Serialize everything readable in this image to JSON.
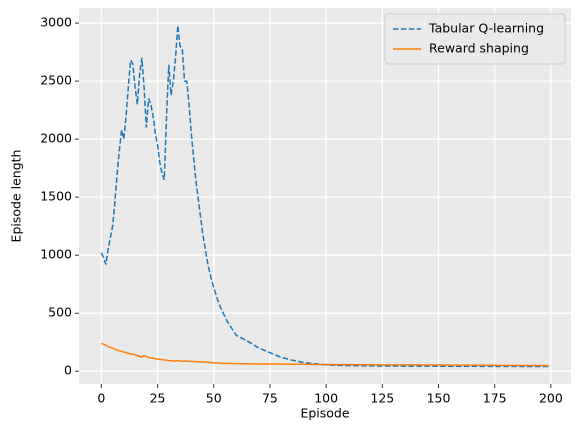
{
  "chart_data": {
    "type": "line",
    "xlabel": "Episode",
    "ylabel": "Episode length",
    "x": [
      0,
      1,
      2,
      3,
      4,
      5,
      6,
      7,
      8,
      9,
      10,
      11,
      12,
      13,
      14,
      15,
      16,
      17,
      18,
      19,
      20,
      21,
      22,
      23,
      24,
      25,
      26,
      27,
      28,
      29,
      30,
      31,
      32,
      33,
      34,
      35,
      36,
      37,
      38,
      39,
      40,
      41,
      42,
      43,
      44,
      45,
      46,
      47,
      48,
      49,
      50,
      51,
      52,
      53,
      54,
      55,
      56,
      57,
      58,
      59,
      60,
      65,
      70,
      75,
      80,
      85,
      90,
      95,
      100,
      105,
      110,
      115,
      120,
      125,
      130,
      135,
      140,
      145,
      150,
      155,
      160,
      165,
      170,
      175,
      180,
      185,
      190,
      195,
      199
    ],
    "series": [
      {
        "name": "Tabular Q-learning",
        "color": "#1f77b4",
        "linestyle": "dashed",
        "values": [
          1020,
          980,
          920,
          1050,
          1150,
          1250,
          1450,
          1700,
          1900,
          2080,
          2000,
          2200,
          2450,
          2680,
          2650,
          2450,
          2300,
          2550,
          2700,
          2450,
          2100,
          2350,
          2300,
          2200,
          2050,
          1950,
          1800,
          1700,
          1650,
          2200,
          2640,
          2380,
          2500,
          2700,
          2980,
          2800,
          2780,
          2500,
          2500,
          2300,
          2050,
          1850,
          1650,
          1500,
          1350,
          1200,
          1080,
          960,
          870,
          790,
          720,
          660,
          600,
          550,
          510,
          470,
          430,
          400,
          370,
          340,
          310,
          260,
          200,
          160,
          120,
          95,
          75,
          65,
          55,
          50,
          48,
          47,
          46,
          45,
          45,
          44,
          44,
          44,
          43,
          43,
          43,
          43,
          42,
          42,
          42,
          42,
          41,
          41,
          41
        ]
      },
      {
        "name": "Reward shaping",
        "color": "#ff7f0e",
        "linestyle": "solid",
        "values": [
          240,
          232,
          225,
          212,
          205,
          200,
          190,
          182,
          175,
          172,
          165,
          160,
          155,
          150,
          148,
          140,
          135,
          128,
          122,
          135,
          125,
          118,
          115,
          112,
          108,
          105,
          102,
          100,
          97,
          95,
          92,
          90,
          88,
          88,
          90,
          88,
          86,
          86,
          88,
          85,
          84,
          84,
          83,
          82,
          82,
          80,
          80,
          78,
          76,
          74,
          72,
          72,
          70,
          70,
          68,
          68,
          68,
          67,
          67,
          66,
          66,
          64,
          62,
          62,
          61,
          60,
          60,
          58,
          58,
          57,
          57,
          56,
          56,
          55,
          55,
          55,
          55,
          54,
          54,
          53,
          53,
          53,
          52,
          52,
          50,
          50,
          49,
          49,
          48
        ]
      }
    ],
    "xlim": [
      -9.95,
      208.95
    ],
    "ylim": [
      -110,
      3130
    ],
    "xticks": [
      0,
      25,
      50,
      75,
      100,
      125,
      150,
      175,
      200
    ],
    "yticks": [
      0,
      500,
      1000,
      1500,
      2000,
      2500,
      3000
    ],
    "grid": true,
    "legend": "upper right"
  }
}
